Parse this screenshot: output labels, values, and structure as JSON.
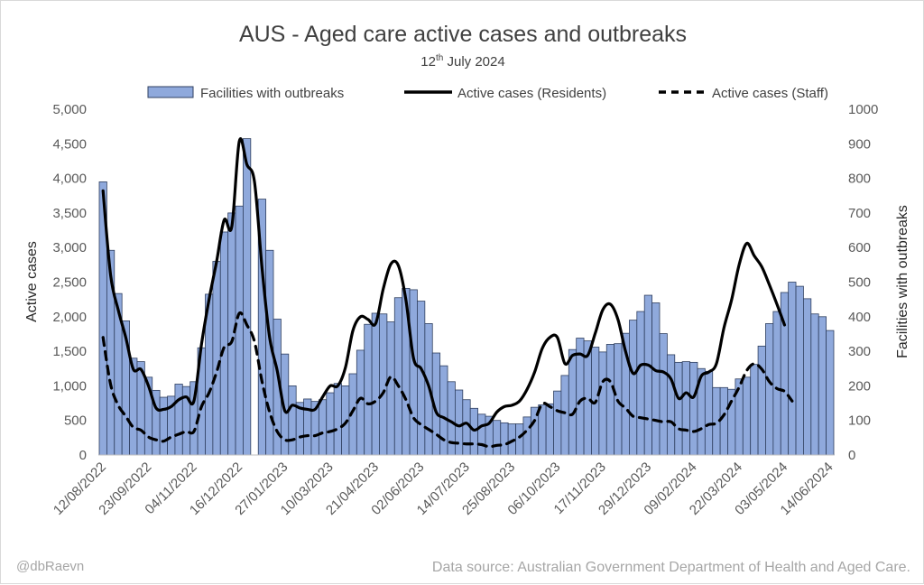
{
  "chart_data": {
    "type": "bar+line",
    "title": "AUS - Aged care active cases and outbreaks",
    "subtitle_main": "12",
    "subtitle_sup": "th",
    "subtitle_rest": " July 2024",
    "ylabel_left": "Active cases",
    "ylabel_right": "Facilities with outbreaks",
    "ylim_left": [
      0,
      5000
    ],
    "ylim_right": [
      0,
      1000
    ],
    "yticks_left": [
      "0",
      "500",
      "1,000",
      "1,500",
      "2,000",
      "2,500",
      "3,000",
      "3,500",
      "4,000",
      "4,500",
      "5,000"
    ],
    "yticks_right": [
      "0",
      "100",
      "200",
      "300",
      "400",
      "500",
      "600",
      "700",
      "800",
      "900",
      "1000"
    ],
    "xtick_labels": [
      {
        "index": 0,
        "label": "12/08/2022"
      },
      {
        "index": 6,
        "label": "23/09/2022"
      },
      {
        "index": 12,
        "label": "04/11/2022"
      },
      {
        "index": 18,
        "label": "16/12/2022"
      },
      {
        "index": 24,
        "label": "27/01/2023"
      },
      {
        "index": 30,
        "label": "10/03/2023"
      },
      {
        "index": 36,
        "label": "21/04/2023"
      },
      {
        "index": 42,
        "label": "02/06/2023"
      },
      {
        "index": 48,
        "label": "14/07/2023"
      },
      {
        "index": 54,
        "label": "25/08/2023"
      },
      {
        "index": 60,
        "label": "06/10/2023"
      },
      {
        "index": 66,
        "label": "17/11/2023"
      },
      {
        "index": 72,
        "label": "29/12/2023"
      },
      {
        "index": 78,
        "label": "09/02/2024"
      },
      {
        "index": 84,
        "label": "22/03/2024"
      },
      {
        "index": 90,
        "label": "03/05/2024"
      },
      {
        "index": 96,
        "label": "14/06/2024"
      }
    ],
    "series": [
      {
        "name": "Facilities with outbreaks",
        "kind": "bar",
        "axis": "right",
        "color": "#8fa9dc",
        "border": "#2f3f5f",
        "gap_after_indices": [
          22,
          80
        ],
        "values": [
          790,
          592,
          467,
          388,
          280,
          270,
          225,
          187,
          167,
          170,
          205,
          198,
          212,
          310,
          465,
          560,
          645,
          700,
          720,
          915,
          null,
          740,
          592,
          393,
          292,
          200,
          152,
          162,
          155,
          160,
          180,
          207,
          200,
          235,
          303,
          378,
          410,
          408,
          385,
          455,
          482,
          478,
          445,
          380,
          295,
          258,
          212,
          188,
          160,
          135,
          118,
          112,
          100,
          93,
          90,
          90,
          110,
          138,
          145,
          148,
          185,
          230,
          305,
          338,
          330,
          312,
          298,
          320,
          322,
          352,
          390,
          415,
          462,
          440,
          351,
          290,
          268,
          270,
          268,
          250,
          242,
          195,
          195,
          190,
          220,
          225,
          262,
          315,
          380,
          415,
          470,
          500,
          488,
          452,
          408,
          400,
          360
        ]
      },
      {
        "name": "Active cases (Residents)",
        "kind": "line",
        "axis": "left",
        "color": "#000000",
        "dash": "solid",
        "values": [
          3820,
          2600,
          2100,
          1700,
          1240,
          1240,
          1000,
          680,
          660,
          700,
          800,
          840,
          780,
          1600,
          2250,
          2800,
          3400,
          3300,
          4540,
          4200,
          3950,
          2700,
          1700,
          1220,
          640,
          720,
          680,
          660,
          660,
          840,
          1000,
          1000,
          1260,
          1800,
          2000,
          1960,
          1900,
          2400,
          2760,
          2740,
          2240,
          1400,
          1250,
          1000,
          620,
          540,
          480,
          420,
          460,
          360,
          420,
          460,
          620,
          700,
          720,
          780,
          950,
          1200,
          1540,
          1700,
          1700,
          1320,
          1440,
          1460,
          1440,
          1760,
          2100,
          2180,
          1960,
          1500,
          1180,
          1300,
          1300,
          1220,
          1200,
          1100,
          820,
          900,
          840,
          1140,
          1200,
          1320,
          1840,
          2240,
          2750,
          3060,
          2880,
          2720,
          2460,
          2180,
          1880
        ]
      },
      {
        "name": "Active cases (Staff)",
        "kind": "line",
        "axis": "left",
        "color": "#000000",
        "dash": "dashed",
        "values": [
          1700,
          1020,
          720,
          560,
          400,
          360,
          260,
          220,
          200,
          260,
          300,
          340,
          340,
          700,
          900,
          1200,
          1560,
          1640,
          2050,
          1880,
          1640,
          1060,
          620,
          340,
          220,
          220,
          260,
          280,
          280,
          320,
          340,
          380,
          460,
          640,
          820,
          740,
          780,
          900,
          1130,
          1000,
          800,
          540,
          440,
          370,
          300,
          220,
          180,
          170,
          160,
          160,
          150,
          120,
          140,
          150,
          200,
          260,
          360,
          500,
          740,
          700,
          640,
          610,
          590,
          780,
          820,
          760,
          1060,
          1060,
          780,
          680,
          560,
          540,
          520,
          500,
          480,
          480,
          380,
          360,
          340,
          380,
          440,
          460,
          580,
          780,
          980,
          1220,
          1320,
          1240,
          1060,
          960,
          920,
          780
        ]
      }
    ],
    "legend": [
      "Facilities with outbreaks",
      "Active cases (Residents)",
      "Active cases (Staff)"
    ]
  },
  "footer": {
    "credit": "@dbRaevn",
    "source": "Data source: Australian Government Department of Health and Aged Care."
  }
}
